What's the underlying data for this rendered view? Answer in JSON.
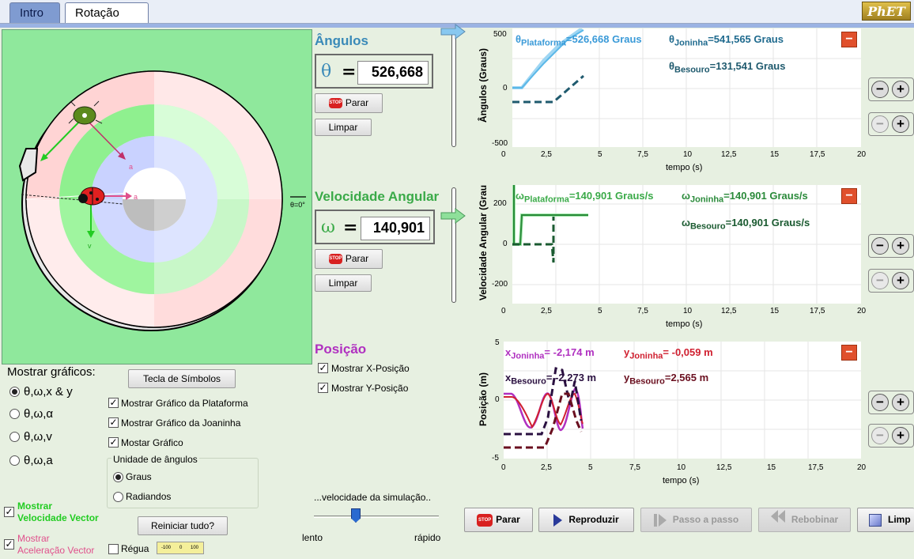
{
  "tabs": [
    {
      "label": "Intro"
    },
    {
      "label": "Rotação"
    }
  ],
  "brand": "PhET",
  "angles": {
    "title": "Ângulos",
    "symbol": "θ",
    "equals": "=",
    "value": "526,668",
    "stop_label": "Parar",
    "clear_label": "Limpar"
  },
  "velocity": {
    "title": "Velocidade Angular",
    "symbol": "ω",
    "equals": "=",
    "value": "140,901",
    "stop_label": "Parar",
    "clear_label": "Limpar"
  },
  "position": {
    "title": "Posição",
    "show_x": "Mostrar X-Posição",
    "show_y": "Mostrar Y-Posição"
  },
  "play_area": {
    "theta_zero": "θ=0°",
    "vector_a1": "a",
    "vector_a2": "a",
    "vector_v": "v"
  },
  "graphs": {
    "angle": {
      "ylabel": "Ângulos (Graus)",
      "xlabel": "tempo (s)",
      "yticks": [
        "500",
        "0",
        "-500"
      ],
      "xticks": [
        "0",
        "2,5",
        "5",
        "7,5",
        "10",
        "12,5",
        "15",
        "17,5",
        "20"
      ],
      "readout_platform_sym": "θ",
      "readout_platform_sub": "Plataforma",
      "readout_platform_val": "=526,668 Graus",
      "readout_ladybug_sym": "θ",
      "readout_ladybug_sub": "Joninha",
      "readout_ladybug_val": "=541,565 Graus",
      "readout_beetle_sym": "θ",
      "readout_beetle_sub": "Besouro",
      "readout_beetle_val": "=131,541 Graus"
    },
    "velocity": {
      "ylabel": "Velocidade Angular (Grau",
      "xlabel": "tempo (s)",
      "yticks": [
        "200",
        "0",
        "-200"
      ],
      "xticks": [
        "0",
        "2,5",
        "5",
        "7,5",
        "10",
        "12,5",
        "15",
        "17,5",
        "20"
      ],
      "readout_platform_sym": "ω",
      "readout_platform_sub": "Plataforma",
      "readout_platform_val": "=140,901 Graus/s",
      "readout_ladybug_sym": "ω",
      "readout_ladybug_sub": "Joninha",
      "readout_ladybug_val": "=140,901 Graus/s",
      "readout_beetle_sym": "ω",
      "readout_beetle_sub": "Besouro",
      "readout_beetle_val": "=140,901 Graus/s"
    },
    "position": {
      "ylabel": "Posição (m)",
      "xlabel": "tempo (s)",
      "yticks": [
        "5",
        "0",
        "-5"
      ],
      "xticks": [
        "0",
        "2,5",
        "5",
        "7,5",
        "10",
        "12,5",
        "15",
        "17,5",
        "20"
      ],
      "readout_xl_sym": "x",
      "readout_xl_sub": "Joninha",
      "readout_xl_val": "= -2,174 m",
      "readout_yl_sym": "y",
      "readout_yl_sub": "Joninha",
      "readout_yl_val": "= -0,059 m",
      "readout_xb_sym": "x",
      "readout_xb_sub": "Besouro",
      "readout_xb_val": "= -2,273 m",
      "readout_yb_sym": "y",
      "readout_yb_sub": "Besouro",
      "readout_yb_val": "=2,565 m"
    }
  },
  "show_graphs": {
    "title": "Mostrar gráficos:",
    "options": [
      "θ,ω,x & y",
      "θ,ω,α",
      "θ,ω,v",
      "θ,ω,a"
    ],
    "selected": 0
  },
  "symbols_button": "Tecla de Símbolos",
  "checks": {
    "platform_graph": "Mostrar Gráfico da Plataforma",
    "ladybug_graph": "Mostrar Gráfico da Joaninha",
    "show_graph": "Mostar Gráfico"
  },
  "angle_units": {
    "title": "Unidade de ângulos",
    "degrees": "Graus",
    "radians": "Radiandos"
  },
  "vectors": {
    "velocity_line1": "Mostrar",
    "velocity_line2": "Velocidade Vector",
    "acceleration_line1": "Mostrar",
    "acceleration_line2": "Aceleração Vector"
  },
  "reset_button": "Reiniciar tudo?",
  "ruler": {
    "label": "Régua",
    "marks": [
      "-100",
      "0",
      "100"
    ]
  },
  "sim_speed": {
    "label": "...velocidade da simulação..",
    "slow": "lento",
    "fast": "rápido"
  },
  "playback": {
    "stop": "Parar",
    "play": "Reproduzir",
    "step": "Passo a passo",
    "rewind": "Rebobinar",
    "clear": "Limp"
  },
  "colors": {
    "platform": "#5bb8e8",
    "ladybug_velocity": "#2a8a3a",
    "ladybug_x": "#b030c0",
    "beetle_y": "#6a0f1f",
    "velocity_vector": "#22cc22",
    "accel_vector": "#e0508c"
  }
}
